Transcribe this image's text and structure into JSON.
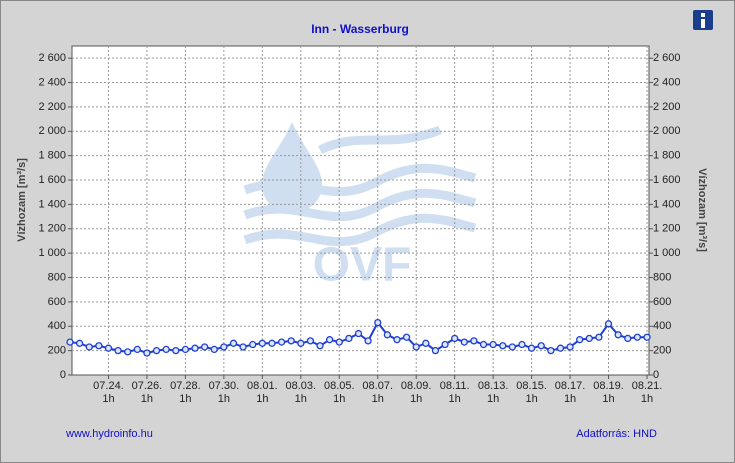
{
  "chart_data": {
    "type": "line",
    "title": "Inn - Wasserburg",
    "y_label": "Vízhozam [m³/s]",
    "hour_label": "1h",
    "watermark": "OVF",
    "footer_left": "www.hydroinfo.hu",
    "footer_right": "Adatforrás: HND",
    "categories": [
      null,
      null,
      null,
      null,
      "07.24.",
      null,
      null,
      null,
      "07.26.",
      null,
      null,
      null,
      "07.28.",
      null,
      null,
      null,
      "07.30.",
      null,
      null,
      null,
      "08.01.",
      null,
      null,
      null,
      "08.03.",
      null,
      null,
      null,
      "08.05.",
      null,
      null,
      null,
      "08.07.",
      null,
      null,
      null,
      "08.09.",
      null,
      null,
      null,
      "08.11.",
      null,
      null,
      null,
      "08.13.",
      null,
      null,
      null,
      "08.15.",
      null,
      null,
      null,
      "08.17.",
      null,
      null,
      null,
      "08.19.",
      null,
      null,
      null,
      "08.21."
    ],
    "series": [
      {
        "name": "Vízhozam",
        "color": "#1f3fd0",
        "values": [
          270,
          260,
          230,
          240,
          220,
          200,
          190,
          210,
          180,
          200,
          210,
          200,
          210,
          220,
          230,
          210,
          230,
          260,
          230,
          250,
          260,
          260,
          270,
          280,
          260,
          280,
          240,
          290,
          270,
          300,
          340,
          280,
          430,
          330,
          290,
          310,
          230,
          260,
          200,
          250,
          300,
          270,
          280,
          250,
          250,
          240,
          230,
          250,
          220,
          240,
          200,
          220,
          230,
          290,
          300,
          310,
          420,
          330,
          300,
          310,
          310
        ]
      }
    ],
    "ylim": [
      0,
      2700
    ],
    "yticks": [
      0,
      200,
      400,
      600,
      800,
      {
        "value": 1000,
        "label": "1 000"
      },
      {
        "value": 1200,
        "label": "1 200"
      },
      {
        "value": 1400,
        "label": "1 400"
      },
      {
        "value": 1600,
        "label": "1 600"
      },
      {
        "value": 1800,
        "label": "1 800"
      },
      {
        "value": 2000,
        "label": "2 000"
      },
      {
        "value": 2200,
        "label": "2 200"
      },
      {
        "value": 2400,
        "label": "2 400"
      },
      {
        "value": 2600,
        "label": "2 600"
      }
    ],
    "grid": true
  }
}
